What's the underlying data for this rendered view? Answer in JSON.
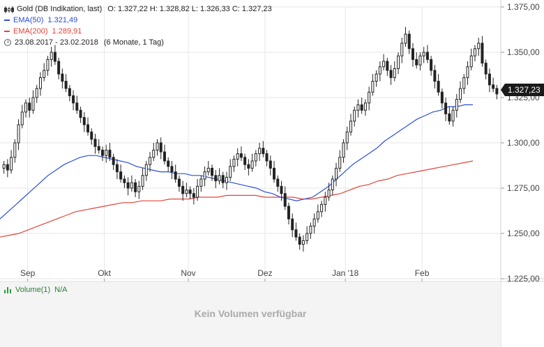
{
  "legend": {
    "instrument": "Gold (DB Indikation, last)",
    "ohlc": "O: 1.327,22  H: 1.328,82  L: 1.326,33  C: 1.327,23",
    "ema50_label": "EMA(50)",
    "ema50_value": "1.321,49",
    "ema200_label": "EMA(200)",
    "ema200_value": "1.289,91",
    "period": "23.08.2017 - 23.02.2018",
    "period_detail": "(6 Monate, 1 Tag)"
  },
  "volume": {
    "label": "Volume(1)",
    "value": "N/A",
    "empty_message": "Kein Volumen verfügbar"
  },
  "last_price": "1.327,23",
  "colors": {
    "ema50": "#2a4fd6",
    "ema200": "#e0453a",
    "candle": "#222222",
    "grid": "#e6e6e6",
    "volume_icon": "#2a9d3a"
  },
  "chart_data": {
    "type": "candlestick",
    "x_ticks": [
      "Sep",
      "Okt",
      "Nov",
      "Dez",
      "Jan '18",
      "Feb"
    ],
    "y_ticks": [
      "1.375,00",
      "1.350,00",
      "1.325,00",
      "1.300,00",
      "1.275,00",
      "1.250,00",
      "1.225,00"
    ],
    "ylim": [
      1225,
      1375
    ],
    "candles_close": [
      1288,
      1285,
      1292,
      1300,
      1310,
      1317,
      1322,
      1318,
      1325,
      1330,
      1336,
      1340,
      1346,
      1350,
      1345,
      1338,
      1334,
      1330,
      1326,
      1322,
      1318,
      1314,
      1310,
      1306,
      1302,
      1298,
      1296,
      1293,
      1296,
      1292,
      1288,
      1284,
      1280,
      1278,
      1275,
      1278,
      1273,
      1276,
      1282,
      1288,
      1292,
      1296,
      1300,
      1295,
      1290,
      1287,
      1284,
      1280,
      1276,
      1272,
      1274,
      1272,
      1270,
      1276,
      1280,
      1284,
      1286,
      1282,
      1279,
      1282,
      1278,
      1281,
      1287,
      1291,
      1294,
      1292,
      1288,
      1286,
      1290,
      1294,
      1297,
      1294,
      1290,
      1286,
      1280,
      1276,
      1272,
      1265,
      1258,
      1252,
      1248,
      1244,
      1246,
      1250,
      1254,
      1258,
      1262,
      1266,
      1270,
      1274,
      1280,
      1286,
      1292,
      1300,
      1306,
      1312,
      1318,
      1321,
      1318,
      1322,
      1328,
      1334,
      1338,
      1342,
      1345,
      1340,
      1336,
      1341,
      1348,
      1355,
      1360,
      1352,
      1346,
      1343,
      1348,
      1350,
      1346,
      1340,
      1334,
      1328,
      1322,
      1316,
      1312,
      1318,
      1324,
      1330,
      1336,
      1342,
      1348,
      1352,
      1355,
      1344,
      1338,
      1332,
      1330,
      1327
    ],
    "ema50": [
      1258,
      1262,
      1266,
      1270,
      1274,
      1278,
      1282,
      1285,
      1288,
      1290,
      1292,
      1293,
      1293,
      1292,
      1291,
      1290,
      1289,
      1287,
      1286,
      1285,
      1284,
      1284,
      1283,
      1283,
      1282,
      1282,
      1281,
      1280,
      1279,
      1278,
      1277,
      1276,
      1275,
      1273,
      1272,
      1270,
      1269,
      1268,
      1269,
      1270,
      1273,
      1276,
      1280,
      1284,
      1288,
      1291,
      1294,
      1297,
      1301,
      1304,
      1307,
      1310,
      1313,
      1315,
      1317,
      1318,
      1320,
      1320,
      1321,
      1321
    ],
    "ema200": [
      1248,
      1249,
      1250,
      1252,
      1254,
      1256,
      1258,
      1260,
      1262,
      1263,
      1264,
      1265,
      1266,
      1267,
      1267,
      1268,
      1268,
      1268,
      1269,
      1269,
      1269,
      1270,
      1270,
      1270,
      1271,
      1271,
      1271,
      1271,
      1270,
      1270,
      1270,
      1270,
      1269,
      1269,
      1270,
      1271,
      1272,
      1274,
      1276,
      1277,
      1279,
      1280,
      1282,
      1283,
      1284,
      1285,
      1286,
      1287,
      1288,
      1289,
      1290
    ]
  }
}
